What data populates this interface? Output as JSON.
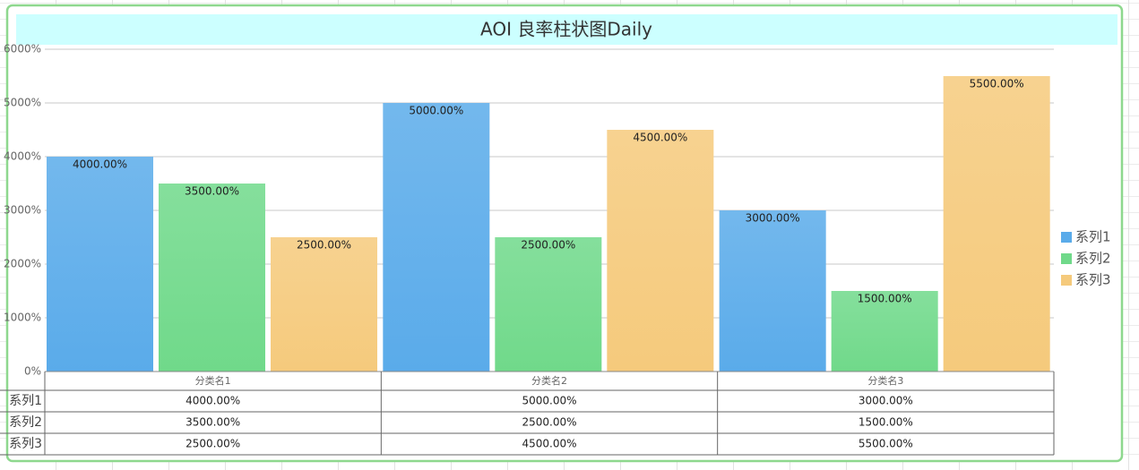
{
  "chart_data": {
    "type": "bar",
    "title": "AOI 良率柱状图Daily",
    "categories": [
      "分类名1",
      "分类名2",
      "分类名3"
    ],
    "series": [
      {
        "name": "系列1",
        "color": "#5aabea",
        "values": [
          4000,
          5000,
          3000
        ],
        "value_labels": [
          "4000.00%",
          "5000.00%",
          "3000.00%"
        ]
      },
      {
        "name": "系列2",
        "color": "#70d98a",
        "values": [
          3500,
          2500,
          1500
        ],
        "value_labels": [
          "3500.00%",
          "2500.00%",
          "1500.00%"
        ]
      },
      {
        "name": "系列3",
        "color": "#f5ca7c",
        "values": [
          2500,
          4500,
          5500
        ],
        "value_labels": [
          "2500.00%",
          "4500.00%",
          "5500.00%"
        ]
      }
    ],
    "ylim": [
      0,
      6000
    ],
    "yticks": [
      {
        "value": 0,
        "label": "0%"
      },
      {
        "value": 1000,
        "label": "1000%"
      },
      {
        "value": 2000,
        "label": "2000%"
      },
      {
        "value": 3000,
        "label": "3000%"
      },
      {
        "value": 4000,
        "label": "4000%"
      },
      {
        "value": 5000,
        "label": "5000%"
      },
      {
        "value": 6000,
        "label": "6000%"
      }
    ],
    "grid": true,
    "legend": "right"
  }
}
